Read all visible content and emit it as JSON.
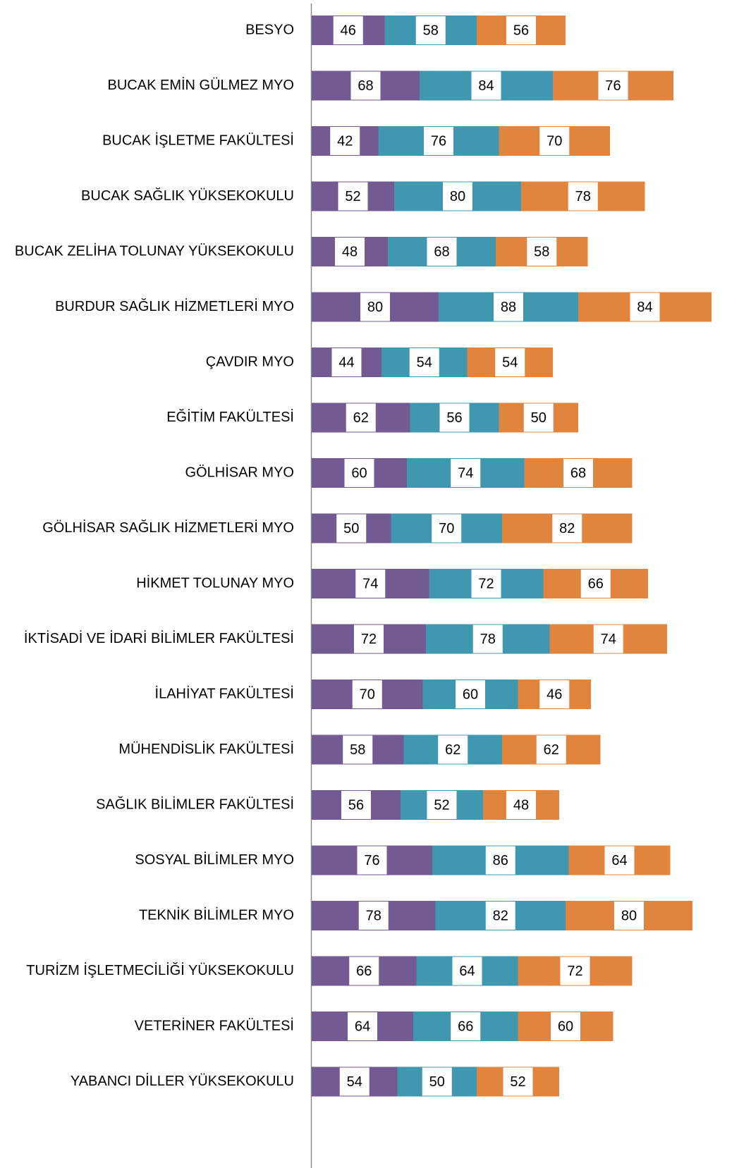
{
  "chart_data": {
    "type": "stacked-bar-horizontal",
    "categories": [
      "BESYO",
      "BUCAK EMİN GÜLMEZ MYO",
      "BUCAK İŞLETME FAKÜLTESİ",
      "BUCAK SAĞLIK YÜKSEKOKULU",
      "BUCAK ZELİHA TOLUNAY YÜKSEKOKULU",
      "BURDUR SAĞLIK HİZMETLERİ MYO",
      "ÇAVDIR MYO",
      "EĞİTİM FAKÜLTESİ",
      "GÖLHİSAR MYO",
      "GÖLHİSAR SAĞLIK HİZMETLERİ MYO",
      "HİKMET TOLUNAY MYO",
      "İKTİSADİ VE İDARİ BİLİMLER FAKÜLTESİ",
      "İLAHİYAT FAKÜLTESİ",
      "MÜHENDİSLİK FAKÜLTESİ",
      "SAĞLIK BİLİMLER FAKÜLTESİ",
      "SOSYAL BİLİMLER MYO",
      "TEKNİK BİLİMLER MYO",
      "TURİZM İŞLETMECİLİĞİ YÜKSEKOKULU",
      "VETERİNER FAKÜLTESİ",
      "YABANCI DİLLER YÜKSEKOKULU"
    ],
    "series": [
      {
        "color": "#735a92",
        "values": [
          46,
          68,
          42,
          52,
          48,
          80,
          44,
          62,
          60,
          50,
          74,
          72,
          70,
          58,
          56,
          76,
          78,
          66,
          64,
          54
        ]
      },
      {
        "color": "#3f98b0",
        "values": [
          58,
          84,
          76,
          80,
          68,
          88,
          54,
          56,
          74,
          70,
          72,
          78,
          60,
          62,
          52,
          86,
          82,
          64,
          66,
          50
        ]
      },
      {
        "color": "#e0843e",
        "values": [
          56,
          76,
          70,
          78,
          58,
          84,
          54,
          50,
          68,
          82,
          66,
          74,
          46,
          62,
          48,
          64,
          80,
          72,
          60,
          52
        ]
      }
    ]
  }
}
